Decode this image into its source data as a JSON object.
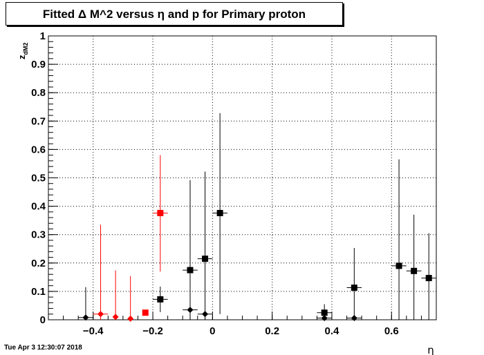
{
  "chart_data": {
    "type": "scatter",
    "title": "Fitted Δ M^2 versus η and p for Primary proton",
    "xlabel": "η",
    "ylabel": "z",
    "ylabel_sub": "dM2",
    "xlim": [
      -0.55,
      0.75
    ],
    "ylim": [
      0,
      1
    ],
    "x_ticks": [
      -0.4,
      -0.2,
      0,
      0.2,
      0.4,
      0.6
    ],
    "x_tick_labels": [
      "−0.4",
      "−0.2",
      "0",
      "0.2",
      "0.4",
      "0.6"
    ],
    "y_ticks": [
      0,
      0.1,
      0.2,
      0.3,
      0.4,
      0.5,
      0.6,
      0.7,
      0.8,
      0.9,
      1
    ],
    "y_tick_labels": [
      "0",
      "0.1",
      "0.2",
      "0.3",
      "0.4",
      "0.5",
      "0.6",
      "0.7",
      "0.8",
      "0.9",
      "1"
    ],
    "grid": true,
    "series": [
      {
        "marker": "square",
        "color": "#000000",
        "points": [
          {
            "x": -0.175,
            "y": 0.072,
            "xerr": 0.025,
            "yerr_low": 0.045,
            "yerr_high": 0.045
          },
          {
            "x": -0.075,
            "y": 0.175,
            "xerr": 0.025,
            "yerr_low": 0.175,
            "yerr_high": 0.317
          },
          {
            "x": -0.025,
            "y": 0.215,
            "xerr": 0.025,
            "yerr_low": 0.215,
            "yerr_high": 0.307
          },
          {
            "x": 0.025,
            "y": 0.376,
            "xerr": 0.025,
            "yerr_low": 0.356,
            "yerr_high": 0.352
          },
          {
            "x": 0.375,
            "y": 0.025,
            "xerr": 0.025,
            "yerr_low": 0.025,
            "yerr_high": 0.03
          },
          {
            "x": 0.475,
            "y": 0.113,
            "xerr": 0.025,
            "yerr_low": 0.113,
            "yerr_high": 0.14
          },
          {
            "x": 0.625,
            "y": 0.19,
            "xerr": 0.025,
            "yerr_low": 0.19,
            "yerr_high": 0.375
          },
          {
            "x": 0.675,
            "y": 0.172,
            "xerr": 0.025,
            "yerr_low": 0.172,
            "yerr_high": 0.198
          },
          {
            "x": 0.725,
            "y": 0.147,
            "xerr": 0.025,
            "yerr_low": 0.147,
            "yerr_high": 0.158
          }
        ]
      },
      {
        "marker": "diamond",
        "color": "#000000",
        "points": [
          {
            "x": -0.425,
            "y": 0.008,
            "xerr": 0.025,
            "yerr_low": 0.008,
            "yerr_high": 0.107
          },
          {
            "x": -0.075,
            "y": 0.035,
            "xerr": 0.025,
            "yerr_low": 0.035,
            "yerr_high": 0.0
          },
          {
            "x": -0.025,
            "y": 0.02,
            "xerr": 0.025,
            "yerr_low": 0.02,
            "yerr_high": 0.0
          },
          {
            "x": 0.375,
            "y": 0.006,
            "xerr": 0.025,
            "yerr_low": 0.006,
            "yerr_high": 0.0
          },
          {
            "x": 0.475,
            "y": 0.006,
            "xerr": 0.025,
            "yerr_low": 0.006,
            "yerr_high": 0.0
          }
        ]
      },
      {
        "marker": "square",
        "color": "#ff0000",
        "points": [
          {
            "x": -0.225,
            "y": 0.025,
            "xerr": 0.0,
            "yerr_low": 0.0,
            "yerr_high": 0.0
          },
          {
            "x": -0.175,
            "y": 0.376,
            "xerr": 0.025,
            "yerr_low": 0.206,
            "yerr_high": 0.204
          }
        ]
      },
      {
        "marker": "diamond",
        "color": "#ff0000",
        "points": [
          {
            "x": -0.375,
            "y": 0.02,
            "xerr": 0.025,
            "yerr_low": 0.02,
            "yerr_high": 0.315
          },
          {
            "x": -0.325,
            "y": 0.01,
            "xerr": 0.0,
            "yerr_low": 0.01,
            "yerr_high": 0.164
          },
          {
            "x": -0.275,
            "y": 0.004,
            "xerr": 0.0,
            "yerr_low": 0.004,
            "yerr_high": 0.15
          }
        ]
      }
    ]
  },
  "footer": {
    "timestamp": "Tue Apr  3 12:30:07 2018"
  }
}
